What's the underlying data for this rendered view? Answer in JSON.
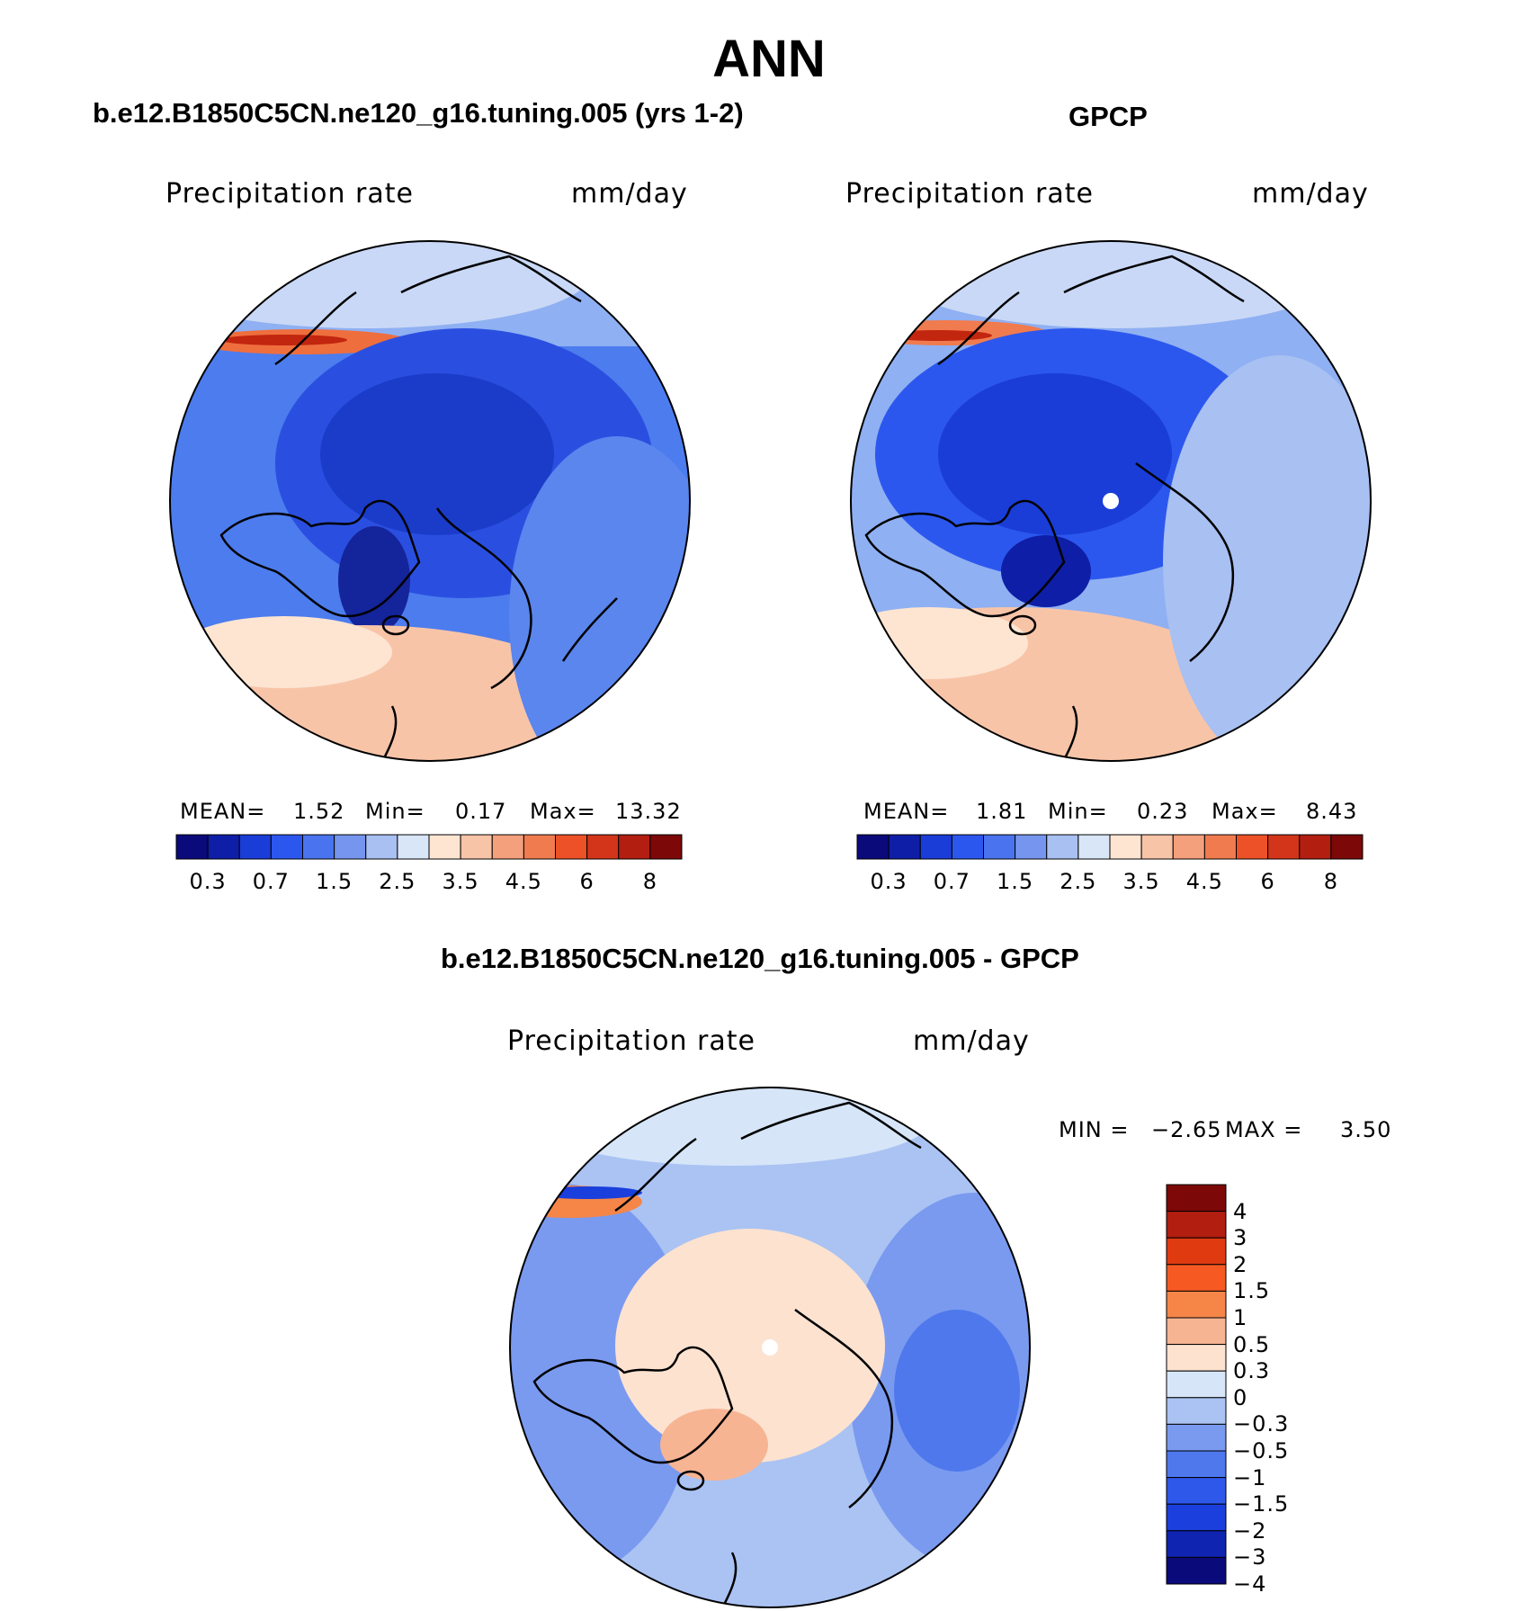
{
  "main_title": "ANN",
  "panels": [
    {
      "title": "b.e12.B1850C5CN.ne120_g16.tuning.005 (yrs 1-2)",
      "variable": "Precipitation rate",
      "units": "mm/day",
      "stats": {
        "mean_label": "MEAN=",
        "mean": "1.52",
        "min_label": "Min=",
        "min": "0.17",
        "max_label": "Max=",
        "max": "13.32"
      }
    },
    {
      "title": "GPCP",
      "variable": "Precipitation rate",
      "units": "mm/day",
      "stats": {
        "mean_label": "MEAN=",
        "mean": "1.81",
        "min_label": "Min=",
        "min": "0.23",
        "max_label": "Max=",
        "max": "8.43"
      }
    },
    {
      "title": "b.e12.B1850C5CN.ne120_g16.tuning.005 - GPCP",
      "variable": "Precipitation rate",
      "units": "mm/day",
      "stats": {
        "min_label": "MIN =",
        "min": "−2.65",
        "max_label": "MAX =",
        "max": "3.50"
      }
    }
  ],
  "colorbar_abs": {
    "colors": [
      "#0b0a7a",
      "#0e1ea6",
      "#1a3dd8",
      "#2c57ee",
      "#4a74ef",
      "#7595ee",
      "#a8c0f2",
      "#d8e6f8",
      "#fde5d2",
      "#f8c4a8",
      "#f4a07c",
      "#f07b4f",
      "#ec5127",
      "#d2351a",
      "#b21e10",
      "#7d0808"
    ],
    "tick_labels": [
      "0.3",
      "0.7",
      "1.5",
      "2.5",
      "3.5",
      "4.5",
      "6",
      "8"
    ]
  },
  "colorbar_diff": {
    "colors": [
      "#7d0808",
      "#b21e10",
      "#e03a10",
      "#f65a22",
      "#f58648",
      "#f7b493",
      "#fde2d0",
      "#d6e5f8",
      "#aac3f3",
      "#7a9af0",
      "#4e78ec",
      "#2e58ea",
      "#1a3fdc",
      "#0f24b0",
      "#0b0a7a"
    ],
    "tick_labels": [
      "4",
      "3",
      "2",
      "1.5",
      "1",
      "0.5",
      "0.3",
      "0",
      "−0.3",
      "−0.5",
      "−1",
      "−1.5",
      "−2",
      "−3",
      "−4"
    ]
  }
}
